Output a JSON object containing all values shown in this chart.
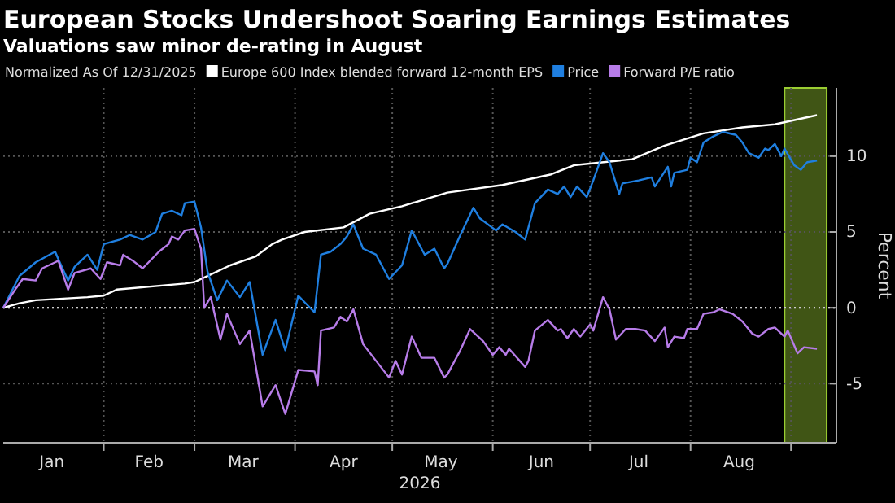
{
  "chart_data": {
    "type": "line",
    "title": "European Stocks Undershoot Soaring Earnings Estimates",
    "subtitle": "Valuations saw minor de-rating in August",
    "legend_title": "Normalized As Of 12/31/2025",
    "xlabel": "2026",
    "ylabel": "Percent",
    "legend": "top",
    "grid": true,
    "xlim": [
      "2026-01-01",
      "2026-09-15"
    ],
    "ylim": [
      -8.9,
      14.5
    ],
    "yticks": [
      -5,
      0,
      5,
      10
    ],
    "xticks": [
      {
        "value": "2026-01-16",
        "label": "Jan"
      },
      {
        "value": "2026-02-01",
        "label": null
      },
      {
        "value": "2026-02-15",
        "label": "Feb"
      },
      {
        "value": "2026-03-01",
        "label": null
      },
      {
        "value": "2026-03-16",
        "label": "Mar"
      },
      {
        "value": "2026-04-01",
        "label": null
      },
      {
        "value": "2026-04-16",
        "label": "Apr"
      },
      {
        "value": "2026-05-01",
        "label": null
      },
      {
        "value": "2026-05-16",
        "label": "May"
      },
      {
        "value": "2026-06-01",
        "label": null
      },
      {
        "value": "2026-06-16",
        "label": "Jun"
      },
      {
        "value": "2026-07-01",
        "label": null
      },
      {
        "value": "2026-07-16",
        "label": "Jul"
      },
      {
        "value": "2026-08-01",
        "label": null
      },
      {
        "value": "2026-08-16",
        "label": "Aug"
      },
      {
        "value": "2026-09-01",
        "label": null
      }
    ],
    "ref_lines": [
      {
        "axis": "y",
        "value": 0,
        "color": "#cccccc",
        "line_style": "dotted"
      }
    ],
    "bands": [
      {
        "axis": "x",
        "from": "2026-08-30",
        "to": "2026-09-12",
        "color": "#6b8e23"
      }
    ],
    "series": [
      {
        "name": "Europe 600 Index blended forward 12-month EPS",
        "color": "#ffffff",
        "x": [
          "2026-01-01",
          "2026-01-06",
          "2026-01-11",
          "2026-01-27",
          "2026-02-01",
          "2026-02-05",
          "2026-02-26",
          "2026-03-01",
          "2026-03-05",
          "2026-03-12",
          "2026-03-20",
          "2026-03-25",
          "2026-03-28",
          "2026-04-04",
          "2026-04-16",
          "2026-04-24",
          "2026-05-04",
          "2026-05-18",
          "2026-06-04",
          "2026-06-19",
          "2026-06-26",
          "2026-07-14",
          "2026-07-24",
          "2026-08-05",
          "2026-08-17",
          "2026-08-27",
          "2026-09-09"
        ],
        "values": [
          0,
          0.3,
          0.5,
          0.7,
          0.8,
          1.2,
          1.6,
          1.7,
          2.1,
          2.8,
          3.4,
          4.2,
          4.5,
          5.0,
          5.3,
          6.2,
          6.7,
          7.6,
          8.1,
          8.8,
          9.4,
          9.8,
          10.7,
          11.5,
          11.9,
          12.1,
          12.7
        ]
      },
      {
        "name": "Price",
        "color": "#1f7fe0",
        "x": [
          "2026-01-01",
          "2026-01-06",
          "2026-01-11",
          "2026-01-17",
          "2026-01-18",
          "2026-01-21",
          "2026-01-23",
          "2026-01-27",
          "2026-01-30",
          "2026-02-01",
          "2026-02-06",
          "2026-02-09",
          "2026-02-13",
          "2026-02-17",
          "2026-02-19",
          "2026-02-22",
          "2026-02-25",
          "2026-02-26",
          "2026-03-01",
          "2026-03-03",
          "2026-03-05",
          "2026-03-08",
          "2026-03-11",
          "2026-03-15",
          "2026-03-18",
          "2026-03-22",
          "2026-03-26",
          "2026-03-29",
          "2026-04-02",
          "2026-04-07",
          "2026-04-09",
          "2026-04-12",
          "2026-04-15",
          "2026-04-17",
          "2026-04-19",
          "2026-04-22",
          "2026-04-26",
          "2026-04-30",
          "2026-05-04",
          "2026-05-07",
          "2026-05-11",
          "2026-05-14",
          "2026-05-17",
          "2026-05-18",
          "2026-05-22",
          "2026-05-26",
          "2026-05-28",
          "2026-06-02",
          "2026-06-04",
          "2026-06-08",
          "2026-06-11",
          "2026-06-14",
          "2026-06-18",
          "2026-06-21",
          "2026-06-23",
          "2026-06-25",
          "2026-06-27",
          "2026-06-30",
          "2026-07-02",
          "2026-07-05",
          "2026-07-07",
          "2026-07-10",
          "2026-07-11",
          "2026-07-16",
          "2026-07-20",
          "2026-07-21",
          "2026-07-25",
          "2026-07-26",
          "2026-07-27",
          "2026-07-31",
          "2026-08-01",
          "2026-08-03",
          "2026-08-05",
          "2026-08-08",
          "2026-08-11",
          "2026-08-15",
          "2026-08-17",
          "2026-08-19",
          "2026-08-22",
          "2026-08-24",
          "2026-08-25",
          "2026-08-27",
          "2026-08-29",
          "2026-08-30",
          "2026-09-02",
          "2026-09-04",
          "2026-09-06",
          "2026-09-09"
        ],
        "values": [
          0,
          2.1,
          3.0,
          3.7,
          3.2,
          1.8,
          2.7,
          3.5,
          2.5,
          4.2,
          4.5,
          4.8,
          4.5,
          5.0,
          6.2,
          6.4,
          6.1,
          6.9,
          7.0,
          5.3,
          2.4,
          0.5,
          1.8,
          0.7,
          1.7,
          -3.1,
          -0.8,
          -2.8,
          0.8,
          -0.3,
          3.5,
          3.7,
          4.2,
          4.7,
          5.5,
          3.9,
          3.5,
          1.9,
          2.8,
          5.1,
          3.5,
          3.9,
          2.6,
          2.9,
          4.8,
          6.6,
          5.9,
          5.1,
          5.5,
          5.0,
          4.5,
          6.9,
          7.8,
          7.5,
          8.0,
          7.3,
          8.0,
          7.3,
          8.4,
          10.2,
          9.6,
          7.5,
          8.2,
          8.4,
          8.6,
          8.0,
          9.3,
          8.0,
          8.9,
          9.1,
          9.9,
          9.6,
          10.9,
          11.3,
          11.6,
          11.4,
          10.9,
          10.2,
          9.9,
          10.5,
          10.4,
          10.8,
          10.0,
          10.5,
          9.4,
          9.1,
          9.6,
          9.7
        ]
      },
      {
        "name": "Forward P/E ratio",
        "color": "#b77ce8",
        "x": [
          "2026-01-01",
          "2026-01-05",
          "2026-01-07",
          "2026-01-11",
          "2026-01-13",
          "2026-01-17",
          "2026-01-18",
          "2026-01-21",
          "2026-01-23",
          "2026-01-28",
          "2026-01-31",
          "2026-02-02",
          "2026-02-06",
          "2026-02-07",
          "2026-02-10",
          "2026-02-13",
          "2026-02-18",
          "2026-02-21",
          "2026-02-22",
          "2026-02-24",
          "2026-02-26",
          "2026-03-01",
          "2026-03-03",
          "2026-03-04",
          "2026-03-06",
          "2026-03-09",
          "2026-03-11",
          "2026-03-15",
          "2026-03-18",
          "2026-03-22",
          "2026-03-26",
          "2026-03-29",
          "2026-04-02",
          "2026-04-07",
          "2026-04-08",
          "2026-04-09",
          "2026-04-13",
          "2026-04-15",
          "2026-04-17",
          "2026-04-19",
          "2026-04-22",
          "2026-04-30",
          "2026-05-02",
          "2026-05-04",
          "2026-05-07",
          "2026-05-10",
          "2026-05-14",
          "2026-05-17",
          "2026-05-18",
          "2026-05-22",
          "2026-05-25",
          "2026-05-29",
          "2026-06-01",
          "2026-06-03",
          "2026-06-05",
          "2026-06-06",
          "2026-06-11",
          "2026-06-12",
          "2026-06-14",
          "2026-06-18",
          "2026-06-21",
          "2026-06-22",
          "2026-06-24",
          "2026-06-26",
          "2026-06-28",
          "2026-07-01",
          "2026-07-02",
          "2026-07-05",
          "2026-07-07",
          "2026-07-09",
          "2026-07-12",
          "2026-07-15",
          "2026-07-18",
          "2026-07-21",
          "2026-07-24",
          "2026-07-25",
          "2026-07-27",
          "2026-07-30",
          "2026-07-31",
          "2026-08-03",
          "2026-08-05",
          "2026-08-08",
          "2026-08-10",
          "2026-08-14",
          "2026-08-17",
          "2026-08-20",
          "2026-08-22",
          "2026-08-25",
          "2026-08-27",
          "2026-08-30",
          "2026-08-31",
          "2026-09-03",
          "2026-09-05",
          "2026-09-09"
        ],
        "values": [
          0,
          1.3,
          1.9,
          1.8,
          2.6,
          3.0,
          3.1,
          1.2,
          2.3,
          2.6,
          1.9,
          3.0,
          2.8,
          3.5,
          3.1,
          2.6,
          3.7,
          4.2,
          4.7,
          4.5,
          5.1,
          5.2,
          3.9,
          0,
          0.7,
          -2.1,
          -0.4,
          -2.4,
          -1.5,
          -6.5,
          -5.1,
          -7.0,
          -4.1,
          -4.2,
          -5.1,
          -1.5,
          -1.3,
          -0.6,
          -0.9,
          -0.1,
          -2.4,
          -4.6,
          -3.5,
          -4.4,
          -1.9,
          -3.3,
          -3.3,
          -4.6,
          -4.4,
          -2.8,
          -1.4,
          -2.2,
          -3.1,
          -2.6,
          -3.1,
          -2.7,
          -3.9,
          -3.5,
          -1.5,
          -0.8,
          -1.5,
          -1.4,
          -2.0,
          -1.4,
          -1.9,
          -1.1,
          -1.5,
          0.7,
          -0.1,
          -2.1,
          -1.4,
          -1.4,
          -1.5,
          -2.2,
          -1.3,
          -2.6,
          -1.9,
          -2.0,
          -1.4,
          -1.4,
          -0.4,
          -0.3,
          -0.1,
          -0.4,
          -0.9,
          -1.7,
          -1.9,
          -1.4,
          -1.3,
          -1.9,
          -1.5,
          -3.0,
          -2.6,
          -2.7
        ]
      }
    ]
  }
}
